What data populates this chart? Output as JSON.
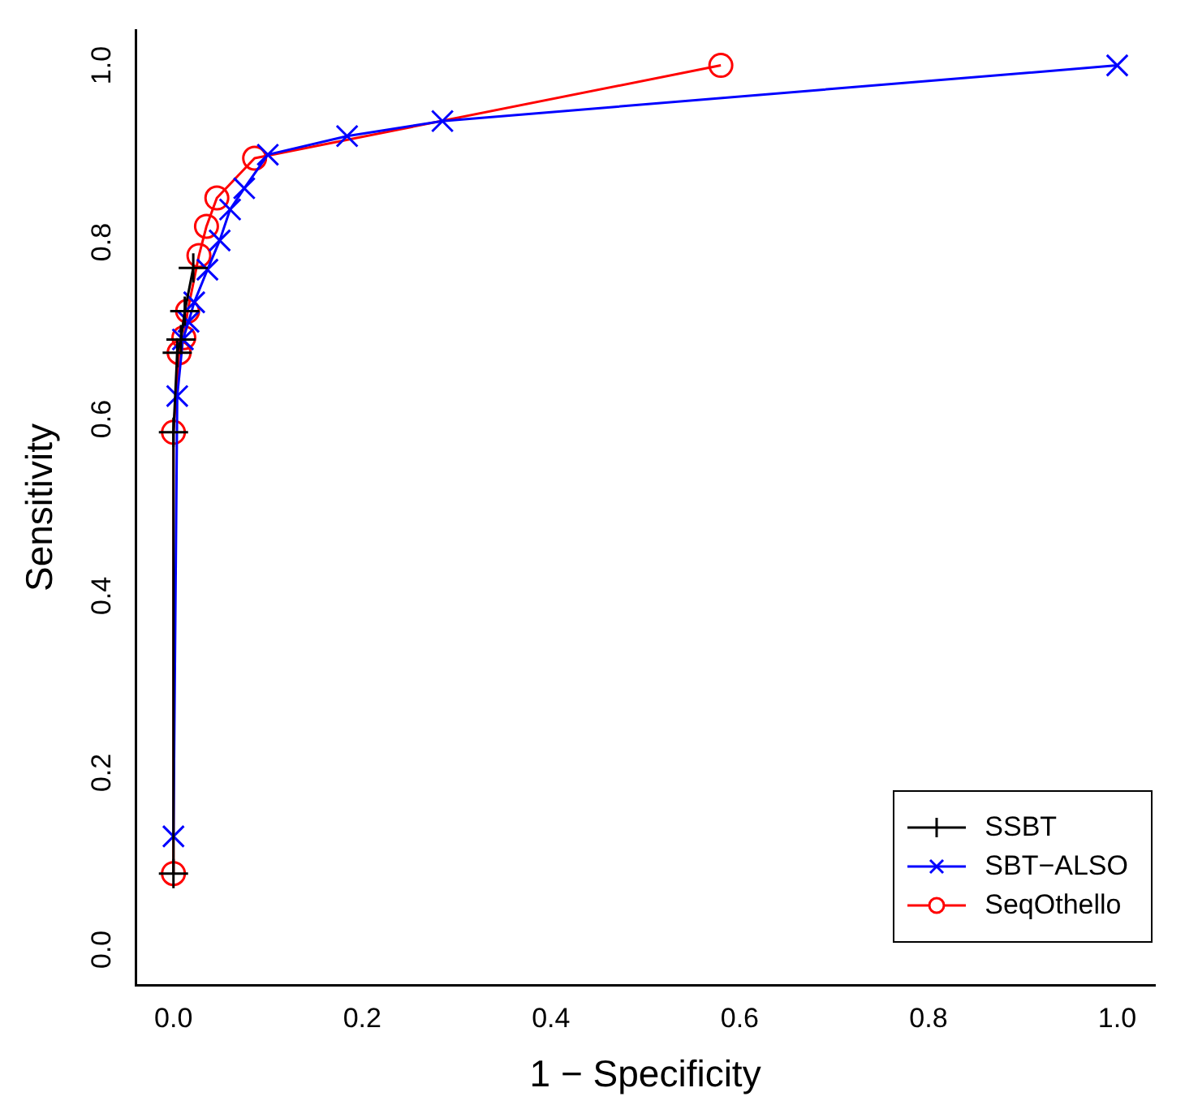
{
  "chart_data": {
    "type": "line",
    "xlabel": "1 − Specificity",
    "ylabel": "Sensitivity",
    "xlim": [
      -0.04,
      1.04
    ],
    "ylim": [
      -0.04,
      1.04
    ],
    "xticks": [
      {
        "value": 0,
        "label": "0.0"
      },
      0.2,
      0.4,
      0.6,
      0.8,
      {
        "value": 1,
        "label": "1.0"
      }
    ],
    "yticks": [
      {
        "value": 0,
        "label": "0.0"
      },
      0.2,
      0.4,
      0.6,
      0.8,
      {
        "value": 1,
        "label": "1.0"
      }
    ],
    "grid": false,
    "legend": "bottom right",
    "series": [
      {
        "name": "SSBT",
        "color": "#000000",
        "marker": "cross",
        "x": [
          0,
          0,
          0.004,
          0.008,
          0.012,
          0.021
        ],
        "values": [
          0.086,
          0.585,
          0.675,
          0.69,
          0.722,
          0.771
        ]
      },
      {
        "name": "SBT−ALSO",
        "color": "#0000ff",
        "marker": "x",
        "x": [
          0,
          0.004,
          0.01,
          0.016,
          0.022,
          0.036,
          0.049,
          0.06,
          0.075,
          0.1,
          0.184,
          0.285,
          1.0
        ],
        "values": [
          0.128,
          0.626,
          0.69,
          0.71,
          0.732,
          0.769,
          0.802,
          0.837,
          0.861,
          0.899,
          0.92,
          0.937,
          1.0
        ]
      },
      {
        "name": "SeqOthello",
        "color": "#ff0000",
        "marker": "circle",
        "x": [
          0,
          0,
          0.006,
          0.011,
          0.015,
          0.027,
          0.035,
          0.046,
          0.086,
          0.58
        ],
        "values": [
          0.086,
          0.585,
          0.675,
          0.692,
          0.722,
          0.785,
          0.818,
          0.85,
          0.895,
          1.0
        ]
      }
    ]
  }
}
